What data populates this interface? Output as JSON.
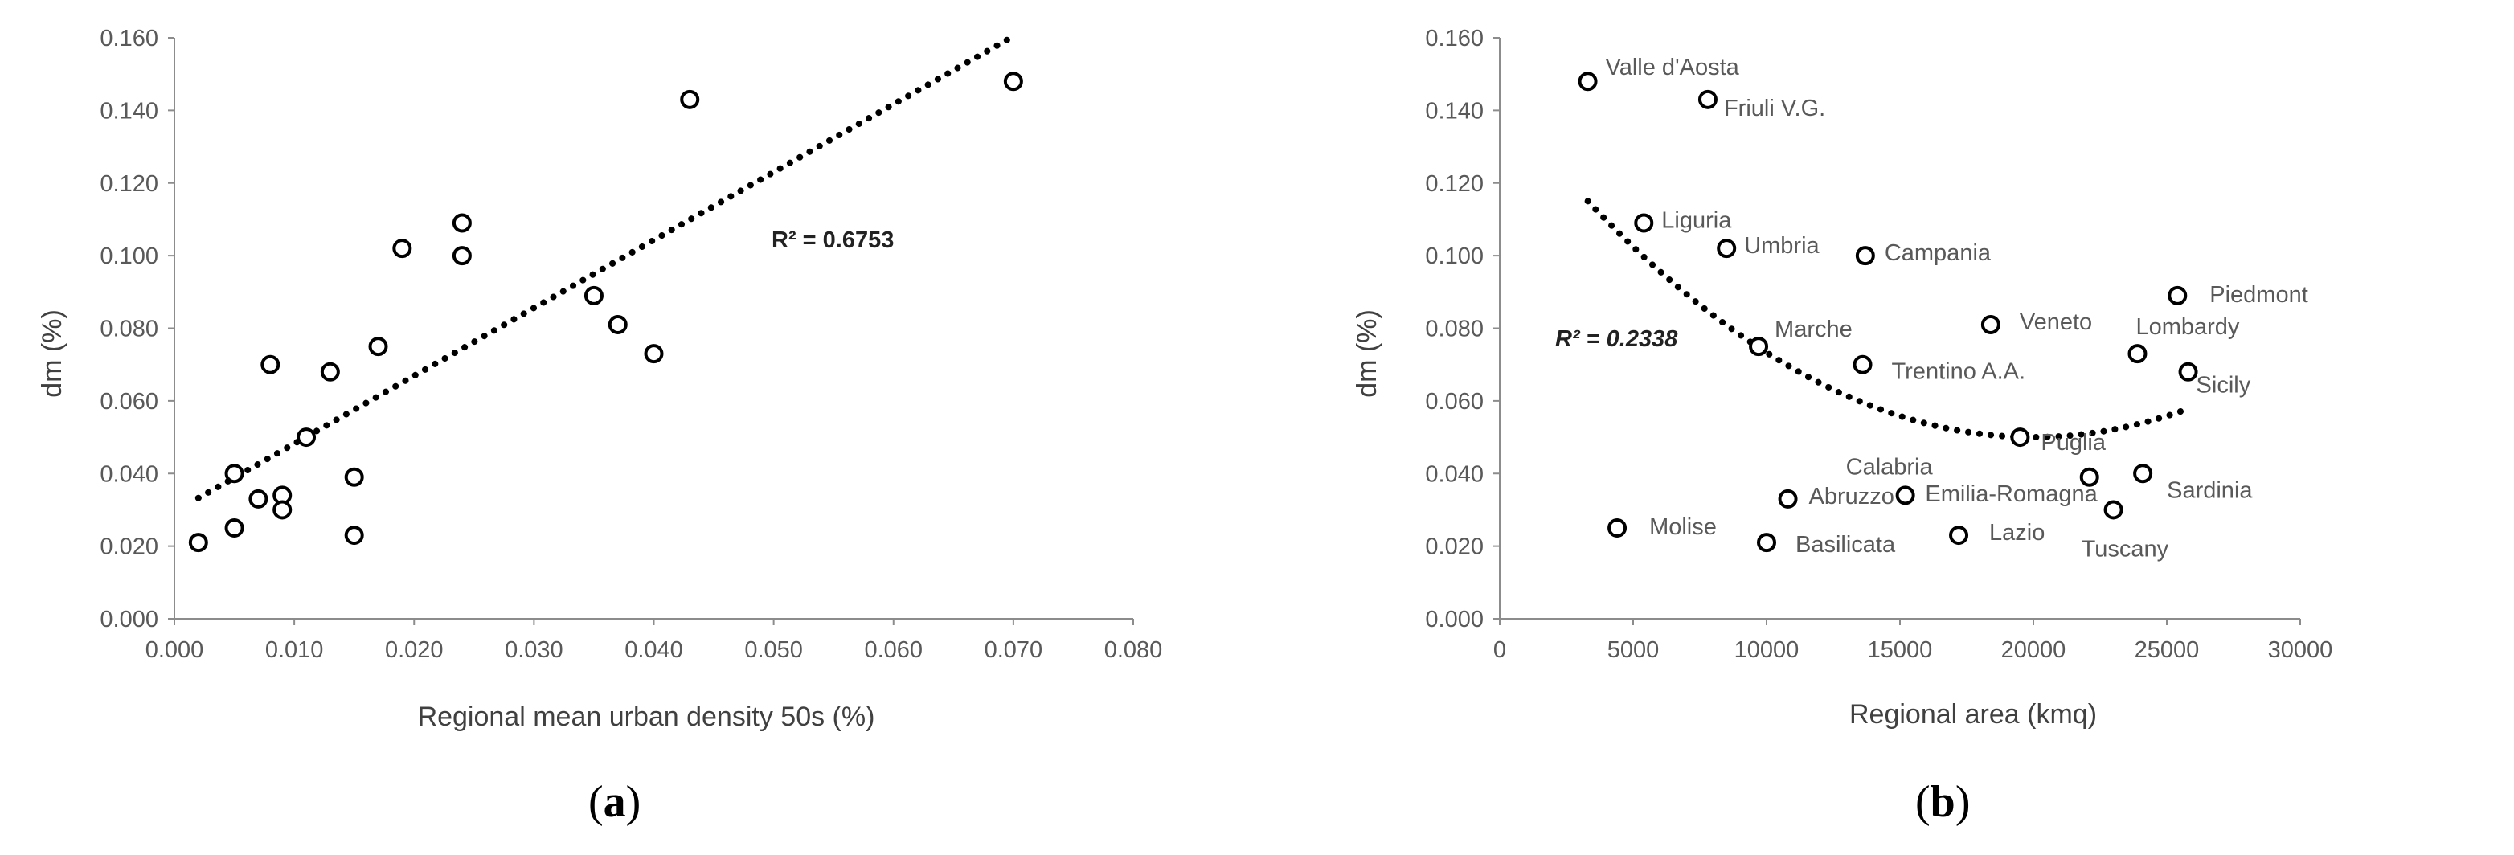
{
  "chart_data": [
    {
      "type": "scatter",
      "caption": "a",
      "xlabel": "Regional mean urban density 50s (%)",
      "ylabel": "dm (%)",
      "xlim": [
        0,
        0.08
      ],
      "ylim": [
        0,
        0.16
      ],
      "x_ticks": [
        "0.000",
        "0.010",
        "0.020",
        "0.030",
        "0.040",
        "0.050",
        "0.060",
        "0.070",
        "0.080"
      ],
      "y_ticks": [
        "0.000",
        "0.020",
        "0.040",
        "0.060",
        "0.080",
        "0.100",
        "0.120",
        "0.140",
        "0.160"
      ],
      "grid": false,
      "r2_label": "R² = 0.6753",
      "trendline": {
        "kind": "linear",
        "r2": 0.6753,
        "x_range": [
          0.002,
          0.07
        ]
      },
      "points": [
        {
          "x": 0.002,
          "y": 0.021
        },
        {
          "x": 0.005,
          "y": 0.04
        },
        {
          "x": 0.005,
          "y": 0.025
        },
        {
          "x": 0.007,
          "y": 0.033
        },
        {
          "x": 0.008,
          "y": 0.07
        },
        {
          "x": 0.009,
          "y": 0.034
        },
        {
          "x": 0.009,
          "y": 0.03
        },
        {
          "x": 0.011,
          "y": 0.05
        },
        {
          "x": 0.013,
          "y": 0.068
        },
        {
          "x": 0.015,
          "y": 0.039
        },
        {
          "x": 0.015,
          "y": 0.023
        },
        {
          "x": 0.017,
          "y": 0.075
        },
        {
          "x": 0.019,
          "y": 0.102
        },
        {
          "x": 0.024,
          "y": 0.109
        },
        {
          "x": 0.024,
          "y": 0.1
        },
        {
          "x": 0.035,
          "y": 0.089
        },
        {
          "x": 0.037,
          "y": 0.081
        },
        {
          "x": 0.04,
          "y": 0.073
        },
        {
          "x": 0.043,
          "y": 0.143
        },
        {
          "x": 0.07,
          "y": 0.148
        }
      ]
    },
    {
      "type": "scatter",
      "caption": "b",
      "xlabel": "Regional area (kmq)",
      "ylabel": "dm (%)",
      "xlim": [
        0,
        30000
      ],
      "ylim": [
        0,
        0.16
      ],
      "x_ticks": [
        "0",
        "5000",
        "10000",
        "15000",
        "20000",
        "25000",
        "30000"
      ],
      "y_ticks": [
        "0.000",
        "0.020",
        "0.040",
        "0.060",
        "0.080",
        "0.100",
        "0.120",
        "0.140",
        "0.160"
      ],
      "grid": false,
      "r2_label": "R² = 0.2338",
      "trendline": {
        "kind": "polynomial-2",
        "r2": 0.2338,
        "x_range": [
          3300,
          25800
        ],
        "vertex": [
          20000,
          0.05
        ],
        "y_at_start": 0.115
      },
      "points": [
        {
          "x": 3300,
          "y": 0.148,
          "label": "Valle d'Aosta"
        },
        {
          "x": 7800,
          "y": 0.143,
          "label": "Friuli V.G."
        },
        {
          "x": 5400,
          "y": 0.109,
          "label": "Liguria"
        },
        {
          "x": 8500,
          "y": 0.102,
          "label": "Umbria"
        },
        {
          "x": 13700,
          "y": 0.1,
          "label": "Campania"
        },
        {
          "x": 25400,
          "y": 0.089,
          "label": "Piedmont"
        },
        {
          "x": 18400,
          "y": 0.081,
          "label": "Veneto"
        },
        {
          "x": 9700,
          "y": 0.075,
          "label": "Marche"
        },
        {
          "x": 23900,
          "y": 0.073,
          "label": "Lombardy"
        },
        {
          "x": 13600,
          "y": 0.07,
          "label": "Trentino A.A."
        },
        {
          "x": 25800,
          "y": 0.068,
          "label": "Sicily"
        },
        {
          "x": 19500,
          "y": 0.05,
          "label": "Puglia"
        },
        {
          "x": 24100,
          "y": 0.04,
          "label": "Sardinia"
        },
        {
          "x": 22100,
          "y": 0.039,
          "label": "Emilia-Romagna"
        },
        {
          "x": 15200,
          "y": 0.034,
          "label": "Calabria"
        },
        {
          "x": 10800,
          "y": 0.033,
          "label": "Abruzzo"
        },
        {
          "x": 23000,
          "y": 0.03,
          "label": "Tuscany"
        },
        {
          "x": 4400,
          "y": 0.025,
          "label": "Molise"
        },
        {
          "x": 17200,
          "y": 0.023,
          "label": "Lazio"
        },
        {
          "x": 10000,
          "y": 0.021,
          "label": "Basilicata"
        }
      ]
    }
  ]
}
